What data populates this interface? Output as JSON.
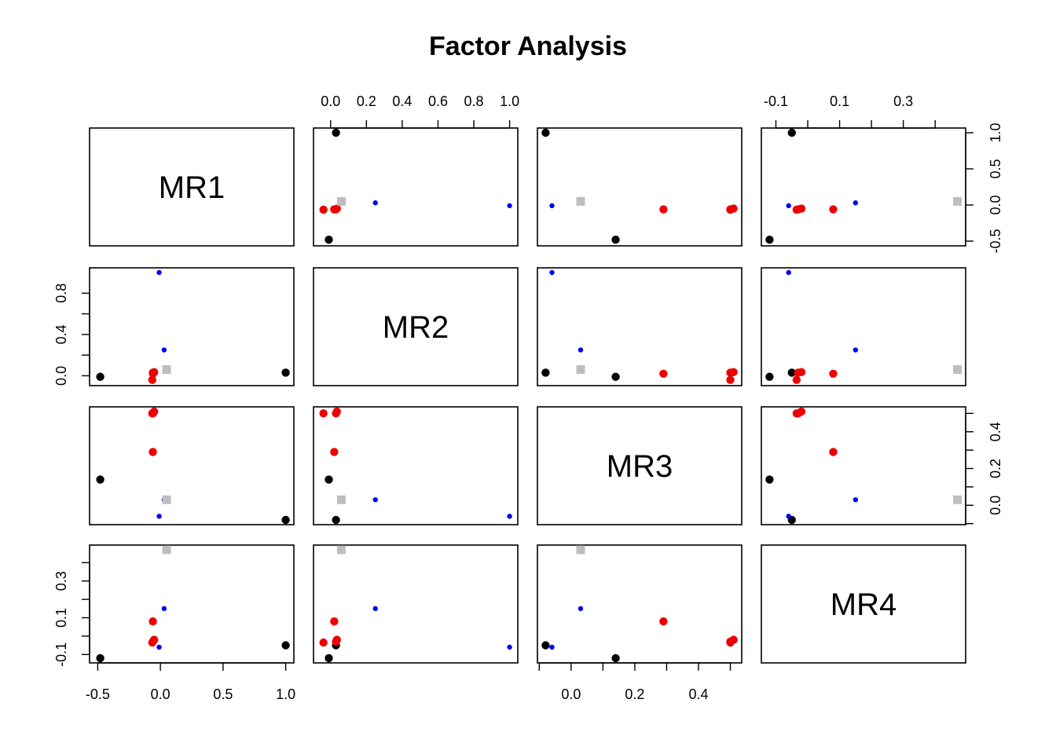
{
  "chart_data": {
    "type": "scatter",
    "title": "Factor Analysis",
    "variables": [
      "MR1",
      "MR2",
      "MR3",
      "MR4"
    ],
    "axes": {
      "MR1": {
        "lim": [
          -0.5,
          1.0
        ],
        "ticks": [
          -0.5,
          0.0,
          0.5,
          1.0
        ],
        "labels": [
          "-0.5",
          "0.0",
          "0.5",
          "1.0"
        ],
        "minor_ticks": []
      },
      "MR2": {
        "lim": [
          -0.05,
          1.0
        ],
        "ticks": [
          0.0,
          0.2,
          0.4,
          0.6,
          0.8,
          1.0
        ],
        "labels": [
          "0.0",
          "0.2",
          "0.4",
          "0.6",
          "0.8",
          "1.0"
        ],
        "minor_ticks": [],
        "alt_ticks": [
          0.0,
          0.4,
          0.8
        ],
        "alt_labels": [
          "0.0",
          "0.4",
          "0.8"
        ],
        "alt_minor_ticks": [
          0.2,
          0.6
        ]
      },
      "MR3": {
        "lim": [
          -0.08,
          0.51
        ],
        "ticks": [
          0.0,
          0.2,
          0.4
        ],
        "labels": [
          "0.0",
          "0.2",
          "0.4"
        ],
        "minor_ticks": [
          -0.1,
          0.1,
          0.3,
          0.5
        ]
      },
      "MR4": {
        "lim": [
          -0.12,
          0.47
        ],
        "ticks": [
          -0.1,
          0.1,
          0.3
        ],
        "labels": [
          "-0.1",
          "0.1",
          "0.3"
        ],
        "minor_ticks": [
          0.0,
          0.2,
          0.4
        ]
      }
    },
    "series": [
      {
        "color": "#000000",
        "shape": "circle",
        "points": [
          {
            "MR1": 1.0,
            "MR2": 0.03,
            "MR3": -0.08,
            "MR4": -0.05
          },
          {
            "MR1": -0.48,
            "MR2": -0.01,
            "MR3": 0.14,
            "MR4": -0.12
          }
        ]
      },
      {
        "color": "#ee0000",
        "shape": "circle",
        "points": [
          {
            "MR1": -0.06,
            "MR2": 0.03,
            "MR3": 0.5,
            "MR4": -0.03
          },
          {
            "MR1": -0.05,
            "MR2": 0.035,
            "MR3": 0.51,
            "MR4": -0.02
          },
          {
            "MR1": -0.065,
            "MR2": -0.04,
            "MR3": 0.5,
            "MR4": -0.035
          },
          {
            "MR1": -0.06,
            "MR2": 0.02,
            "MR3": 0.29,
            "MR4": 0.08
          }
        ]
      },
      {
        "color": "#0000ee",
        "shape": "small-circle",
        "points": [
          {
            "MR1": 0.03,
            "MR2": 0.25,
            "MR3": 0.03,
            "MR4": 0.15
          },
          {
            "MR1": -0.01,
            "MR2": 1.0,
            "MR3": -0.06,
            "MR4": -0.06
          }
        ]
      },
      {
        "color": "#bebebe",
        "shape": "square",
        "points": [
          {
            "MR1": 0.05,
            "MR2": 0.06,
            "MR3": 0.03,
            "MR4": 0.47
          }
        ]
      }
    ]
  }
}
